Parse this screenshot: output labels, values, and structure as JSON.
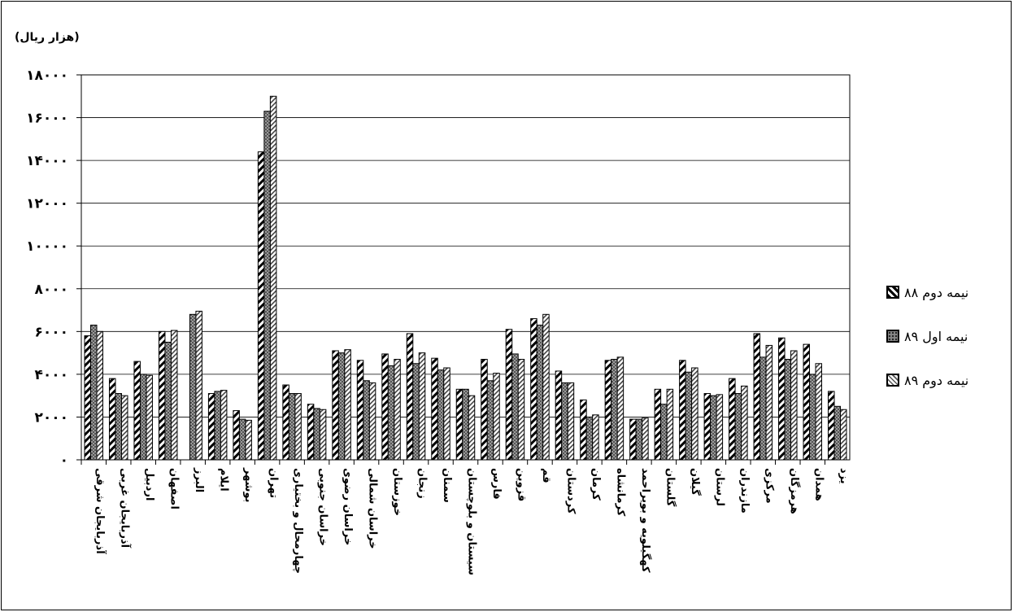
{
  "unit_label": "(هزار ریال)",
  "chart_data": {
    "type": "bar",
    "ylim": [
      0,
      18000
    ],
    "grid": true,
    "legend_position": "right",
    "y_tick_labels": [
      "۰",
      "۲۰۰۰",
      "۴۰۰۰",
      "۶۰۰۰",
      "۸۰۰۰",
      "۱۰۰۰۰",
      "۱۲۰۰۰",
      "۱۴۰۰۰",
      "۱۶۰۰۰",
      "۱۸۰۰۰"
    ],
    "categories": [
      "آذربایجان شرقی",
      "آذربایجان غربی",
      "اردبیل",
      "اصفهان",
      "البرز",
      "ایلام",
      "بوشهر",
      "تهران",
      "چهارمحال و بختیاری",
      "خراسان جنوبی",
      "خراسان رضوی",
      "خراسان شمالی",
      "خوزستان",
      "زنجان",
      "سمنان",
      "سیستان و بلوچستان",
      "فارس",
      "قزوین",
      "قم",
      "کردستان",
      "کرمان",
      "کرمانشاه",
      "کهگیلویه و بویراحمد",
      "گلستان",
      "گیلان",
      "لرستان",
      "مازندران",
      "مرکزی",
      "هرمزگان",
      "همدان",
      "یزد"
    ],
    "series": [
      {
        "name": "نیمه دوم ۸۸",
        "values": [
          5800,
          3800,
          4600,
          6000,
          null,
          3100,
          2300,
          14400,
          3500,
          2600,
          5100,
          4650,
          4950,
          5900,
          4750,
          3300,
          4700,
          6100,
          6600,
          4150,
          2800,
          4650,
          1900,
          3300,
          4650,
          3100,
          3800,
          5900,
          5700,
          5400,
          3200
        ]
      },
      {
        "name": "نیمه اول ۸۹",
        "values": [
          6300,
          3100,
          4000,
          5500,
          6800,
          3200,
          1900,
          16300,
          3100,
          2400,
          5000,
          3700,
          4400,
          4500,
          4200,
          3300,
          3700,
          4950,
          6300,
          3600,
          2000,
          4700,
          1900,
          2600,
          4100,
          3000,
          3100,
          4800,
          4700,
          4000,
          2500
        ]
      },
      {
        "name": "نیمه دوم ۸۹",
        "values": [
          6000,
          3000,
          3950,
          6050,
          6950,
          3250,
          1850,
          17000,
          3100,
          2350,
          5150,
          3600,
          4700,
          5000,
          4300,
          3000,
          4050,
          4700,
          6800,
          3600,
          2100,
          4800,
          1950,
          3300,
          4300,
          3050,
          3450,
          5350,
          5100,
          4500,
          2350
        ]
      }
    ]
  },
  "legend": [
    {
      "label": "نیمه دوم ۸۸"
    },
    {
      "label": "نیمه اول ۸۹"
    },
    {
      "label": "نیمه دوم ۸۹"
    }
  ]
}
